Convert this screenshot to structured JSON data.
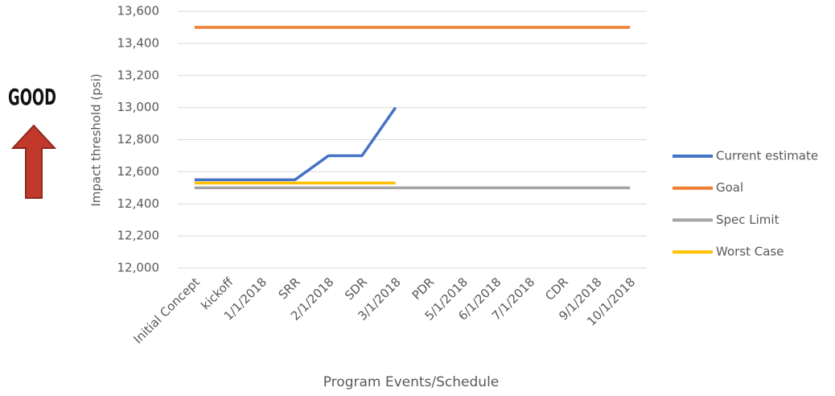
{
  "chart_data": {
    "type": "line",
    "annotation": "GOOD",
    "ylabel": "Impact threshold (psi)",
    "xlabel": "Program Events/Schedule",
    "categories": [
      "Initial Concept",
      "kickoff",
      "1/1/2018",
      "SRR",
      "2/1/2018",
      "SDR",
      "3/1/2018",
      "PDR",
      "5/1/2018",
      "6/1/2018",
      "7/1/2018",
      "CDR",
      "9/1/2018",
      "10/1/2018"
    ],
    "series": [
      {
        "name": "Current estimate",
        "color": "#4472c4",
        "values": [
          12550,
          12550,
          12550,
          12550,
          12700,
          12700,
          13000,
          null,
          null,
          null,
          null,
          null,
          null,
          null
        ]
      },
      {
        "name": "Goal",
        "color": "#ed7d31",
        "values": [
          13500,
          13500,
          13500,
          13500,
          13500,
          13500,
          13500,
          13500,
          13500,
          13500,
          13500,
          13500,
          13500,
          13500
        ]
      },
      {
        "name": "Spec Limit",
        "color": "#a5a5a5",
        "values": [
          12500,
          12500,
          12500,
          12500,
          12500,
          12500,
          12500,
          12500,
          12500,
          12500,
          12500,
          12500,
          12500,
          12500
        ]
      },
      {
        "name": "Worst Case",
        "color": "#ffc000",
        "values": [
          12530,
          12530,
          12530,
          12530,
          12530,
          12530,
          12530,
          null,
          null,
          null,
          null,
          null,
          null,
          null
        ]
      }
    ],
    "ylim": [
      12000,
      13600
    ],
    "yticks": [
      {
        "value": 12000,
        "label": "12,000"
      },
      {
        "value": 12200,
        "label": "12,200"
      },
      {
        "value": 12400,
        "label": "12,400"
      },
      {
        "value": 12600,
        "label": "12,600"
      },
      {
        "value": 12800,
        "label": "12,800"
      },
      {
        "value": 13000,
        "label": "13,000"
      },
      {
        "value": 13200,
        "label": "13,200"
      },
      {
        "value": 13400,
        "label": "13,400"
      },
      {
        "value": 13600,
        "label": "13,600"
      }
    ],
    "grid": true,
    "legend": "right"
  }
}
